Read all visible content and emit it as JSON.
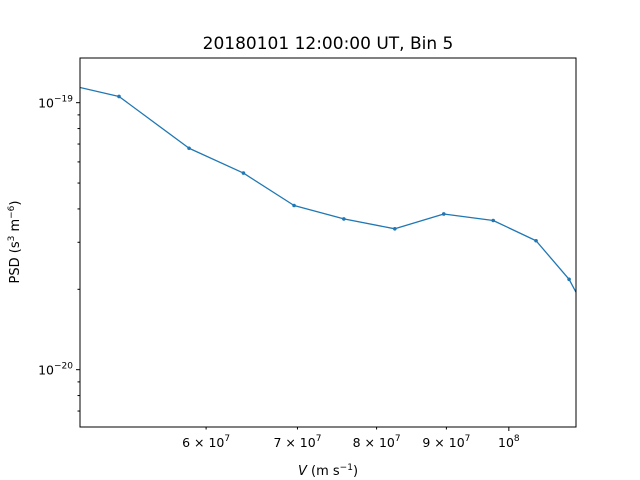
{
  "chart_data": {
    "type": "line",
    "title": "20180101 12:00:00 UT, Bin 5",
    "xlabel": "V (m s⁻¹)",
    "ylabel": "PSD (s³ m⁻⁶)",
    "xscale": "log",
    "yscale": "log",
    "xlim": [
      48500000,
      112000000
    ],
    "ylim": [
      6.1e-21,
      1.47e-19
    ],
    "grid": false,
    "x_major_ticks": [
      {
        "value": 100000000,
        "label": "10",
        "exp": "8"
      }
    ],
    "x_minor_ticks": [
      {
        "value": 60000000,
        "label": "6 × 10",
        "exp": "7"
      },
      {
        "value": 70000000,
        "label": "7 × 10",
        "exp": "7"
      },
      {
        "value": 80000000,
        "label": "8 × 10",
        "exp": "7"
      },
      {
        "value": 90000000,
        "label": "9 × 10",
        "exp": "7"
      }
    ],
    "y_major_ticks": [
      {
        "value": 1e-19,
        "label": "10",
        "exp": "−19"
      },
      {
        "value": 1e-20,
        "label": "10",
        "exp": "−20"
      }
    ],
    "series": [
      {
        "color": "#1f77b4",
        "x": [
          48500000,
          51800000,
          58300000,
          63900000,
          69600000,
          75700000,
          82500000,
          89600000,
          97400000,
          104700000,
          110700000,
          112000000
        ],
        "y": [
          1.14e-19,
          1.055e-19,
          6.75e-20,
          5.45e-20,
          4.12e-20,
          3.67e-20,
          3.37e-20,
          3.83e-20,
          3.62e-20,
          3.04e-20,
          2.18e-20,
          1.95e-20
        ],
        "markers": [
          false,
          true,
          true,
          true,
          true,
          true,
          true,
          true,
          true,
          true,
          true,
          false
        ]
      }
    ]
  }
}
